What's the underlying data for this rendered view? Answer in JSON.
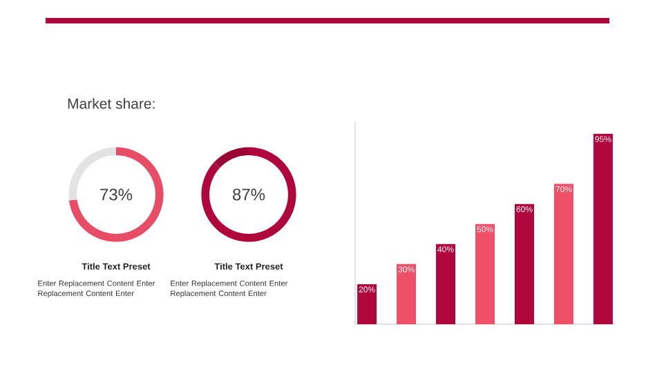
{
  "chart_data": [
    {
      "type": "donut",
      "title": "Title Text Preset",
      "categories": [
        null,
        null
      ],
      "values": [
        73,
        27
      ],
      "colors": [
        "#e84d67",
        "#e3e3e3"
      ],
      "value_labels": [
        "73%",
        null
      ],
      "annotations": [
        "Market share:",
        "Enter Replacement Content Enter Replacement Content Enter"
      ]
    },
    {
      "type": "donut",
      "title": "Title Text Preset",
      "categories": [
        null,
        null
      ],
      "values": [
        87,
        13
      ],
      "colors": [
        "#b0063e",
        "#9a0535"
      ],
      "value_labels": [
        "87%",
        null
      ],
      "annotations": [
        "Enter Replacement Content Enter Replacement Content Enter"
      ]
    },
    {
      "type": "bar",
      "categories": [
        null,
        null,
        null,
        null,
        null,
        null,
        null
      ],
      "values": [
        20,
        30,
        40,
        50,
        60,
        70,
        95
      ],
      "colors": [
        "#b0063e",
        "#ee5068",
        "#b0063e",
        "#ee5068",
        "#b0063e",
        "#ee5068",
        "#b0063e"
      ],
      "value_labels": [
        "20%",
        "30%",
        "40%",
        "50%",
        "60%",
        "70%",
        "95%"
      ],
      "tick_labels": false
    }
  ]
}
